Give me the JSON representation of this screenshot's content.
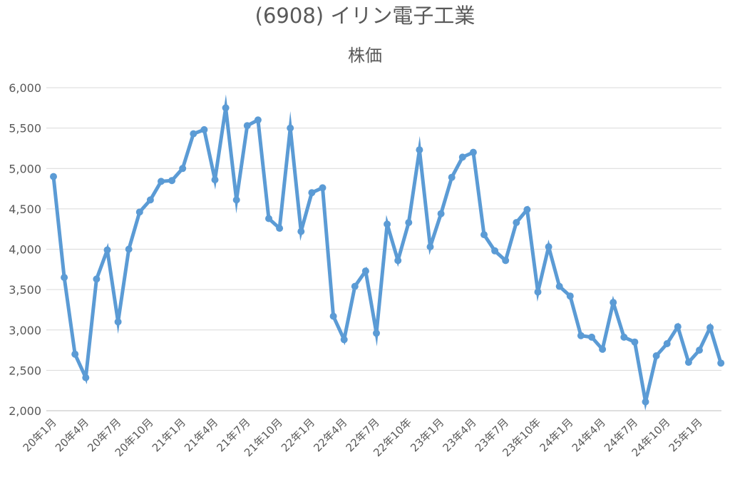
{
  "chart_data": {
    "type": "line",
    "title": "(6908) イリン電子工業",
    "subtitle": "株価",
    "ylim": [
      2000,
      6000
    ],
    "yticks": [
      2000,
      2500,
      3000,
      3500,
      4000,
      4500,
      5000,
      5500,
      6000
    ],
    "ytick_labels": [
      "2,000",
      "2,500",
      "3,000",
      "3,500",
      "4,000",
      "4,500",
      "5,000",
      "5,500",
      "6,000"
    ],
    "xtick_labels": [
      "20年1月",
      "20年4月",
      "20年7月",
      "20年10月",
      "21年1月",
      "21年4月",
      "21年7月",
      "21年10月",
      "22年1月",
      "22年4月",
      "22年7月",
      "22年10年",
      "23年1月",
      "23年4月",
      "23年7月",
      "23年10年",
      "24年1月",
      "24年4月",
      "24年7月",
      "24年10月",
      "25年1月"
    ],
    "grid": true,
    "legend": "none",
    "line_color": "#5b9bd5",
    "series": [
      {
        "values": [
          4900,
          3650,
          2700,
          2410,
          3630,
          3990,
          3100,
          4000,
          4460,
          4610,
          4840,
          4850,
          5000,
          5430,
          5480,
          4860,
          5750,
          4610,
          5530,
          5600,
          4380,
          4260,
          5500,
          4220,
          4700,
          4760,
          3170,
          2880,
          3540,
          3730,
          2960,
          4310,
          3860,
          4330,
          5230,
          4030,
          4440,
          4890,
          5140,
          5200,
          4180,
          3980,
          3860,
          4330,
          4490,
          3470,
          4030,
          3540,
          3420,
          2930,
          2910,
          2760,
          3340,
          2910,
          2850,
          2110,
          2680,
          2830,
          3040,
          2600,
          2750,
          3030,
          2590
        ]
      }
    ]
  }
}
